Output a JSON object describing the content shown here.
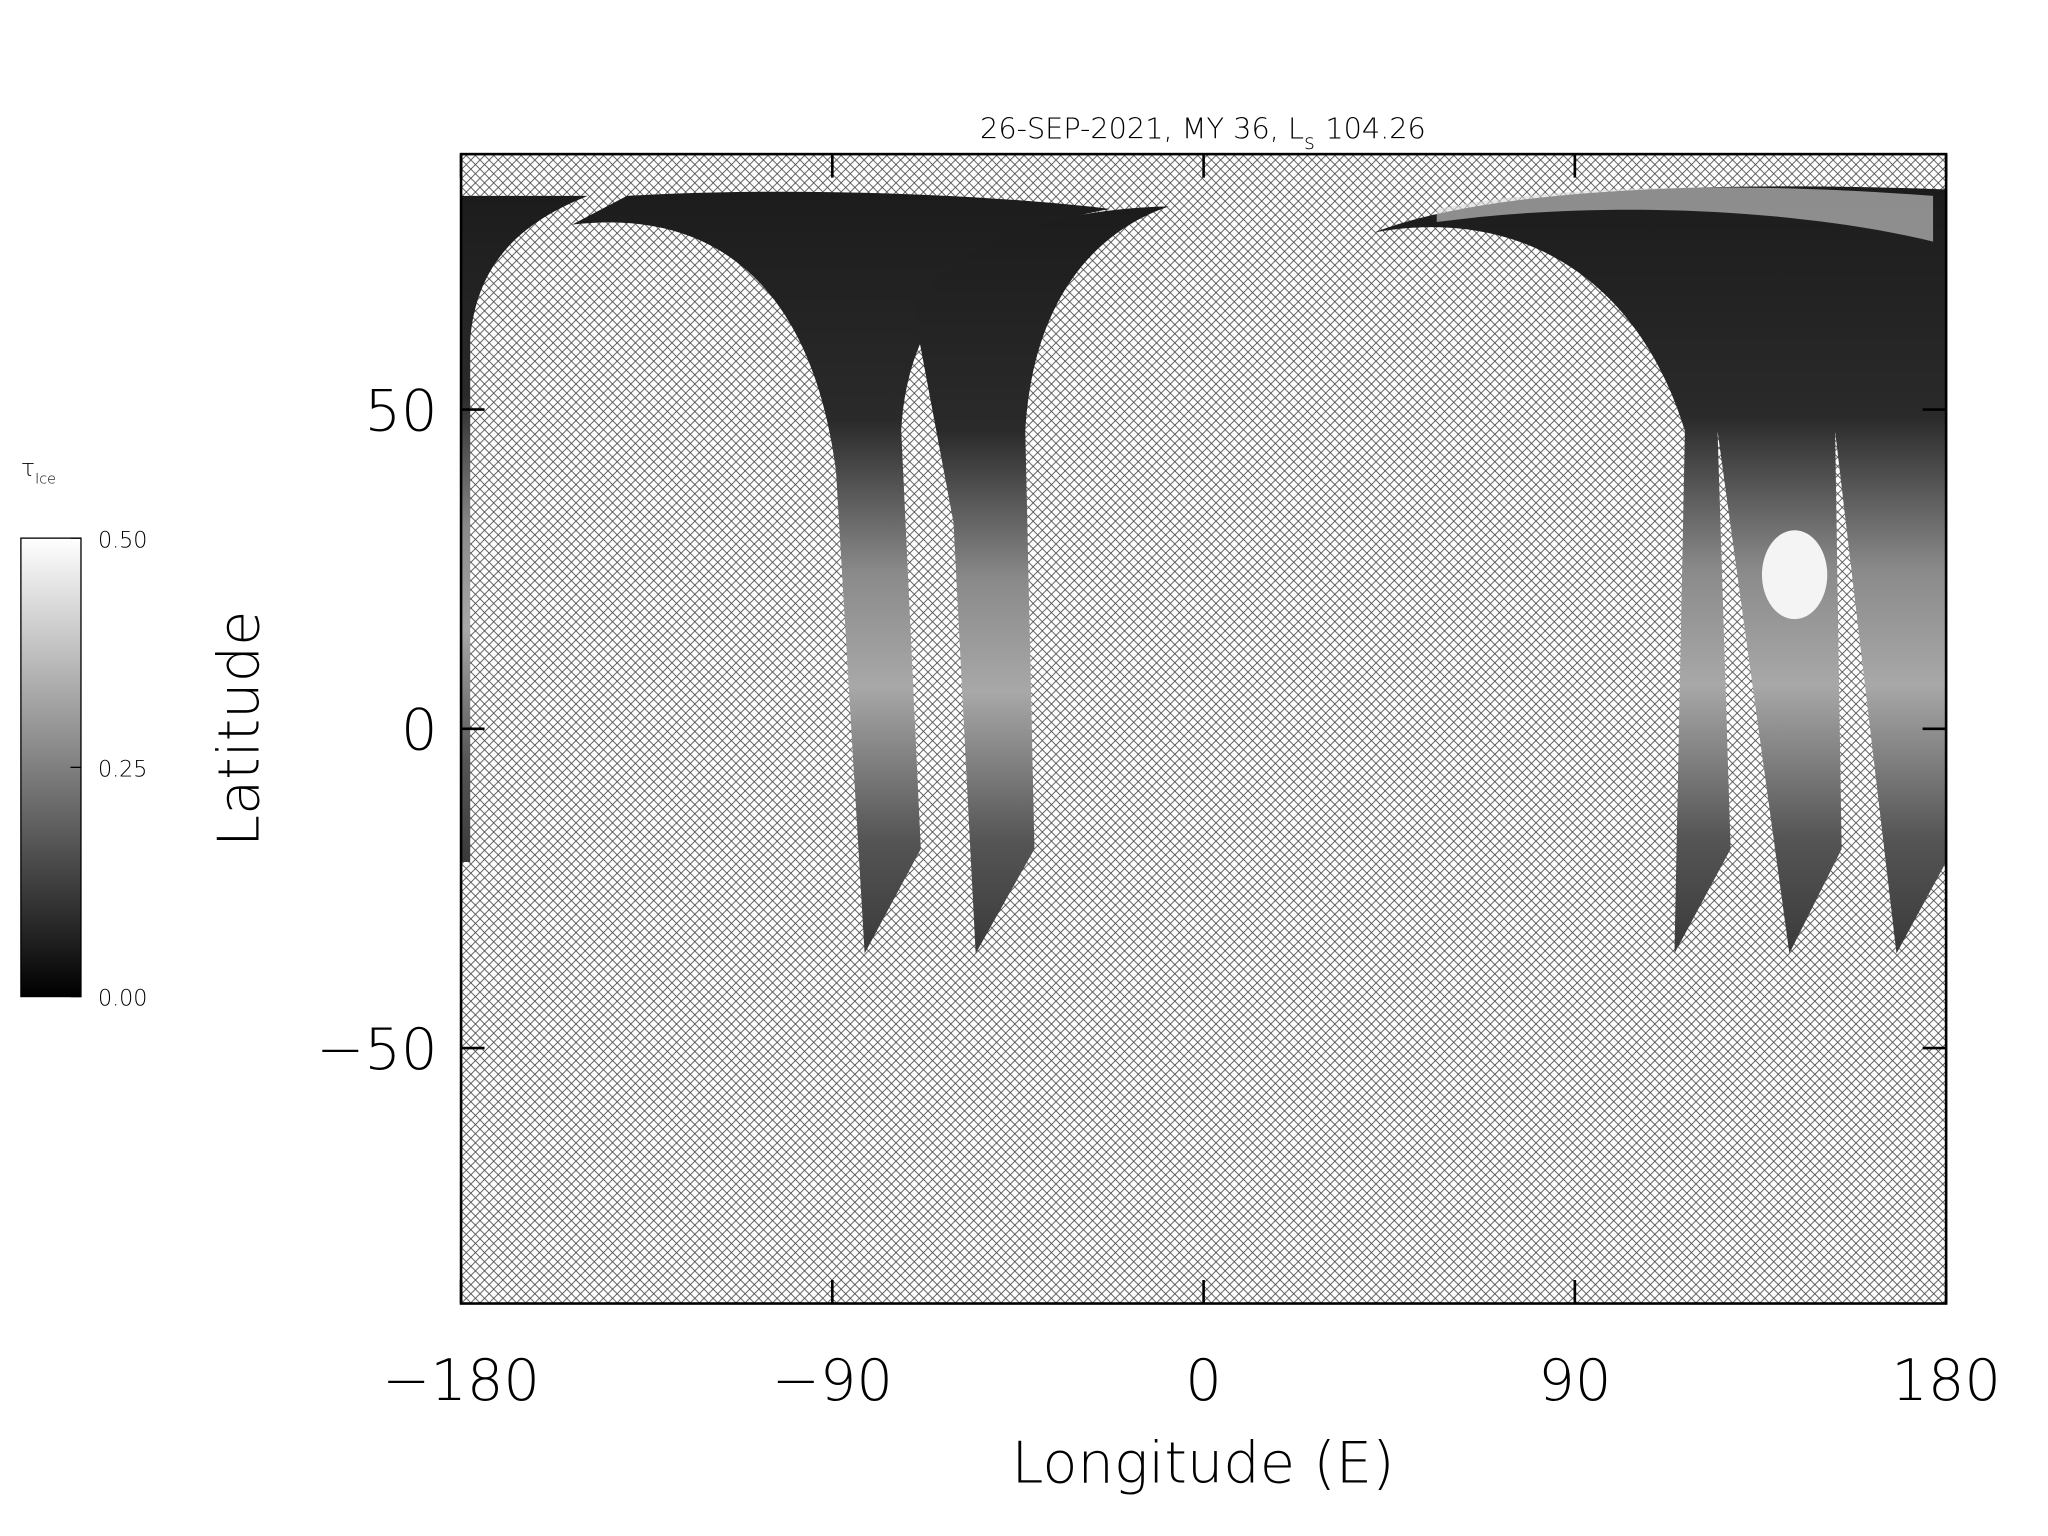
{
  "chart_data": {
    "type": "map",
    "title": "26-SEP-2021, MY 36,  L",
    "title_subscript": "s",
    "title_end": "104.26",
    "xlabel": "Longitude (E)",
    "ylabel": "Latitude",
    "xlim": [
      -180,
      180
    ],
    "ylim": [
      -90,
      90
    ],
    "xticks": [
      {
        "value": -180,
        "label": "−180"
      },
      {
        "value": -90,
        "label": "−90"
      },
      0,
      90,
      180
    ],
    "yticks": [
      {
        "value": -50,
        "label": "−50"
      },
      0,
      50
    ],
    "colorbar": {
      "label": "τ",
      "label_subscript": "Ice",
      "lim": [
        0,
        0.5
      ],
      "ticks": [
        {
          "value": 0,
          "label": "0.00"
        },
        {
          "value": 0.25,
          "label": "0.25"
        },
        {
          "value": 0.5,
          "label": "0.50"
        }
      ]
    }
  }
}
